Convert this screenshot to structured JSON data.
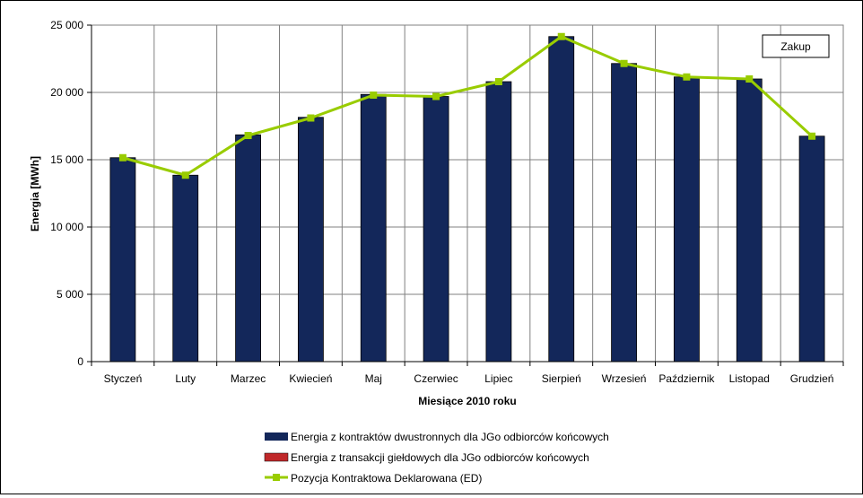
{
  "chart_data": {
    "type": "bar",
    "title": "",
    "xlabel": "Miesiące 2010  roku",
    "ylabel": "Energia [MWh]",
    "ylim": [
      0,
      25000
    ],
    "yticks": [
      0,
      5000,
      10000,
      15000,
      20000,
      25000
    ],
    "ytick_labels": [
      "0",
      "5 000",
      "10 000",
      "15 000",
      "20 000",
      "25 000"
    ],
    "grid": true,
    "categories": [
      "Styczeń",
      "Luty",
      "Marzec",
      "Kwiecień",
      "Maj",
      "Czerwiec",
      "Lipiec",
      "Sierpień",
      "Wrzesień",
      "Październik",
      "Listopad",
      "Grudzień"
    ],
    "series": [
      {
        "name": "Energia z kontraktów dwustronnych dla JGo odbiorców końcowych",
        "type": "bar",
        "color": "#13275a",
        "values": [
          15150,
          13850,
          16850,
          18150,
          19850,
          19700,
          20800,
          24150,
          22150,
          21150,
          21000,
          16750
        ]
      },
      {
        "name": "Energia z transakcji giełdowych dla JGo odbiorców końcowych",
        "type": "bar",
        "color": "#c0282a",
        "values": [
          0,
          0,
          0,
          0,
          0,
          0,
          0,
          0,
          0,
          0,
          0,
          0
        ]
      },
      {
        "name": "Pozycja Kontraktowa Deklarowana  (ED)",
        "type": "line",
        "color": "#99cc00",
        "values": [
          15150,
          13850,
          16800,
          18100,
          19800,
          19700,
          20800,
          24150,
          22150,
          21150,
          21000,
          16750
        ]
      }
    ],
    "annotation": "Zakup",
    "legend_position": "bottom"
  }
}
